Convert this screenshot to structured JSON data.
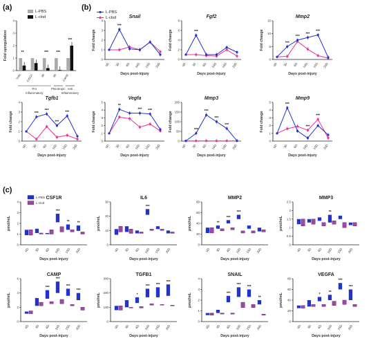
{
  "panel_labels": [
    "(a)",
    "(b)",
    "(c)"
  ],
  "colors": {
    "lpbs_blue": "#2233cc",
    "lclod_pink": "#e8339a",
    "lclod_box": "#9a4aa0",
    "lpbs_bar": "#aaaaaa",
    "lclod_bar": "#111111"
  },
  "legends": {
    "a": [
      "L-PBS",
      "L-clod"
    ],
    "b": [
      "L-PBS",
      "L-clod"
    ],
    "c": [
      "L-PBS",
      "L-clod"
    ]
  },
  "chart_data": [
    {
      "panel": "a",
      "type": "bar",
      "ylabel": "Fold upregulation",
      "ylim": [
        0,
        4
      ],
      "yticks": [
        0,
        1,
        2,
        3,
        4
      ],
      "categories": [
        "Tnfα",
        "Cd11c",
        "Il6",
        "Il6",
        "Camp"
      ],
      "groups": [
        {
          "label": "Pro Inflammatory",
          "span": [
            0,
            2
          ]
        },
        {
          "label": "Pleiotropic",
          "span": [
            3,
            3
          ]
        },
        {
          "label": "Anti Inflammatory",
          "span": [
            4,
            4
          ]
        }
      ],
      "series": [
        {
          "name": "L-PBS",
          "values": [
            1,
            1,
            1,
            1,
            1
          ]
        },
        {
          "name": "L-clod",
          "values": [
            0.4,
            0.6,
            0.2,
            0.05,
            2.0
          ]
        }
      ],
      "sig": [
        "**",
        "",
        "***",
        "***",
        "***"
      ]
    },
    {
      "panel": "b",
      "type": "line",
      "x": [
        "0D",
        "3D",
        "6D",
        "10D",
        "15D",
        "20D"
      ],
      "xlabel": "Days post-injury",
      "ylabel": "Fold change",
      "subplots": [
        {
          "title": "Snail",
          "ylim": [
            0,
            4
          ],
          "yticks": [
            0,
            1,
            2,
            3,
            4
          ],
          "pbs": [
            1,
            3.1,
            1.1,
            1,
            1.8,
            0.5
          ],
          "clod": [
            1,
            1,
            1.3,
            1,
            1.8,
            0.8
          ],
          "sig": [
            "",
            "***",
            "",
            "",
            "",
            ""
          ]
        },
        {
          "title": "Fgf2",
          "ylim": [
            0,
            8
          ],
          "yticks": [
            0,
            2,
            4,
            6,
            8
          ],
          "pbs": [
            1,
            5,
            1,
            1,
            2.5,
            1.5
          ],
          "clod": [
            1,
            1,
            0.8,
            0.7,
            2,
            0.7
          ],
          "sig": [
            "",
            "***",
            "",
            "",
            "",
            ""
          ]
        },
        {
          "title": "Mmp2",
          "ylim": [
            0,
            15
          ],
          "yticks": [
            0,
            5,
            10,
            15
          ],
          "pbs": [
            1,
            5,
            7.5,
            8.5,
            9.5,
            0.8
          ],
          "clod": [
            1,
            1.2,
            7,
            4,
            1.5,
            0.5
          ],
          "sig": [
            "",
            "***",
            "***",
            "***",
            "***",
            ""
          ]
        },
        {
          "title": "Tgfb1",
          "ylim": [
            0,
            4
          ],
          "yticks": [
            0,
            1,
            2,
            3,
            4
          ],
          "pbs": [
            1,
            2.5,
            2.8,
            1.6,
            2.6,
            0.5
          ],
          "clod": [
            1,
            0.2,
            1.5,
            0.4,
            0.6,
            0.2
          ],
          "sig": [
            "",
            "***",
            "***",
            "***",
            "***",
            ""
          ]
        },
        {
          "title": "Vegfa",
          "ylim": [
            0,
            5
          ],
          "yticks": [
            0,
            1,
            2,
            3,
            4,
            5
          ],
          "pbs": [
            1,
            4.1,
            3.6,
            3.6,
            3.5,
            1.5
          ],
          "clod": [
            1,
            3.1,
            2.9,
            1.8,
            2.2,
            1.3
          ],
          "sig": [
            "",
            "**",
            "",
            "***",
            "***",
            ""
          ]
        },
        {
          "title": "Mmp3",
          "ylim": [
            0,
            200
          ],
          "yticks": [
            0,
            50,
            100,
            150,
            200
          ],
          "pbs": [
            1,
            40,
            135,
            100,
            65,
            1
          ],
          "clod": [
            1,
            1,
            1,
            1,
            1,
            1
          ],
          "sig": [
            "",
            "***",
            "***",
            "***",
            "***",
            ""
          ]
        },
        {
          "title": "Mmp9",
          "ylim": [
            0,
            5
          ],
          "yticks": [
            0,
            1,
            2,
            3,
            4,
            5
          ],
          "pbs": [
            1,
            4.3,
            1.3,
            0.4,
            2,
            0.8
          ],
          "clod": [
            1,
            1.6,
            1.9,
            1.4,
            2.8,
            0.4
          ],
          "sig": [
            "",
            "***",
            "",
            "***",
            "***",
            ""
          ]
        }
      ]
    },
    {
      "panel": "c",
      "type": "box",
      "x": [
        "0D",
        "3D",
        "6D",
        "10D",
        "15D",
        "20D"
      ],
      "xlabel": "Days post-injury",
      "ylabel": "pmol/mL",
      "subplots": [
        {
          "title": "CSF1R",
          "ylim": [
            0,
            4
          ],
          "yticks": [
            0,
            1,
            2,
            3,
            4
          ],
          "pbs": [
            [
              0.9,
              1.4
            ],
            [
              1.1,
              1.5
            ],
            [
              1.0,
              1.1
            ],
            [
              2.1,
              2.9
            ],
            [
              1.4,
              1.9
            ],
            [
              1.3,
              1.8
            ]
          ],
          "clod": [
            [
              0.9,
              1.4
            ],
            [
              1.0,
              1.1
            ],
            [
              1.0,
              1.4
            ],
            [
              1.2,
              1.7
            ],
            [
              1.2,
              1.4
            ],
            [
              1.0,
              1.2
            ]
          ],
          "sig": [
            "",
            "",
            "",
            "***",
            "**",
            "**"
          ]
        },
        {
          "title": "IL6",
          "ylim": [
            0,
            30
          ],
          "yticks": [
            0,
            10,
            20,
            30
          ],
          "pbs": [
            [
              7,
              11
            ],
            [
              9,
              13
            ],
            [
              8,
              10
            ],
            [
              21,
              25
            ],
            [
              11,
              13
            ],
            [
              8,
              10
            ]
          ],
          "clod": [
            [
              9,
              13
            ],
            [
              8,
              11
            ],
            [
              8,
              9
            ],
            [
              10,
              11
            ],
            [
              10,
              11
            ],
            [
              8,
              9
            ]
          ],
          "sig": [
            "",
            "",
            "",
            "***",
            "",
            ""
          ]
        },
        {
          "title": "MMP2",
          "ylim": [
            0,
            80
          ],
          "yticks": [
            0,
            20,
            40,
            60,
            80
          ],
          "pbs": [
            [
              22,
              32
            ],
            [
              30,
              36
            ],
            [
              40,
              46
            ],
            [
              48,
              56
            ],
            [
              30,
              36
            ],
            [
              25,
              32
            ]
          ],
          "clod": [
            [
              22,
              32
            ],
            [
              26,
              30
            ],
            [
              28,
              32
            ],
            [
              22,
              26
            ],
            [
              22,
              26
            ],
            [
              24,
              28
            ]
          ],
          "sig": [
            "",
            "**",
            "***",
            "***",
            "",
            ""
          ]
        },
        {
          "title": "MMP3",
          "ylim": [
            0,
            2.5
          ],
          "yticks": [
            0,
            0.5,
            1.0,
            1.5,
            2.0,
            2.5
          ],
          "pbs": [
            [
              1.2,
              1.5
            ],
            [
              1.3,
              1.5
            ],
            [
              1.4,
              1.6
            ],
            [
              1.3,
              1.75
            ],
            [
              1.5,
              1.7
            ],
            [
              1.15,
              1.3
            ]
          ],
          "clod": [
            [
              1.1,
              1.5
            ],
            [
              1.2,
              1.5
            ],
            [
              1.1,
              1.3
            ],
            [
              1.2,
              1.4
            ],
            [
              1.0,
              1.3
            ],
            [
              1.1,
              1.3
            ]
          ],
          "sig": [
            "",
            "",
            "",
            "**",
            "",
            ""
          ]
        },
        {
          "title": "CAMP",
          "ylim": [
            0,
            6
          ],
          "yticks": [
            0,
            2,
            4,
            6
          ],
          "pbs": [
            [
              1.1,
              1.4
            ],
            [
              2.2,
              3.3
            ],
            [
              3.2,
              4.4
            ],
            [
              4.0,
              5.6
            ],
            [
              3.6,
              4.6
            ],
            [
              3.0,
              4.0
            ]
          ],
          "clod": [
            [
              1.1,
              1.5
            ],
            [
              2.2,
              2.7
            ],
            [
              2.5,
              2.8
            ],
            [
              2.5,
              3.1
            ],
            [
              2.2,
              2.4
            ],
            [
              1.6,
              2.0
            ]
          ],
          "sig": [
            "",
            "",
            "***",
            "***",
            "***",
            "***"
          ]
        },
        {
          "title": "TGFB1",
          "ylim": [
            0,
            300
          ],
          "yticks": [
            0,
            100,
            200,
            300
          ],
          "pbs": [
            [
              80,
              110
            ],
            [
              100,
              150
            ],
            [
              130,
              170
            ],
            [
              170,
              230
            ],
            [
              170,
              240
            ],
            [
              180,
              260
            ]
          ],
          "clod": [
            [
              80,
              110
            ],
            [
              95,
              100
            ],
            [
              95,
              105
            ],
            [
              115,
              125
            ],
            [
              115,
              120
            ],
            [
              110,
              115
            ]
          ],
          "sig": [
            "",
            "",
            "*",
            "***",
            "***",
            "***"
          ]
        },
        {
          "title": "SNAIL",
          "ylim": [
            0,
            4
          ],
          "yticks": [
            0,
            1,
            2,
            3,
            4
          ],
          "pbs": [
            [
              0.6,
              0.8
            ],
            [
              0.8,
              1.1
            ],
            [
              1.8,
              2.4
            ],
            [
              2.3,
              3.2
            ],
            [
              2.3,
              3.0
            ],
            [
              1.6,
              2.0
            ]
          ],
          "clod": [
            [
              0.6,
              0.8
            ],
            [
              0.7,
              0.8
            ],
            [
              0.7,
              0.8
            ],
            [
              1.3,
              1.8
            ],
            [
              1.3,
              1.6
            ],
            [
              0.6,
              0.7
            ]
          ],
          "sig": [
            "",
            "",
            "***",
            "***",
            "***",
            "**"
          ]
        },
        {
          "title": "VEGFA",
          "ylim": [
            0,
            80
          ],
          "yticks": [
            0,
            20,
            40,
            60,
            80
          ],
          "pbs": [
            [
              25,
              30
            ],
            [
              28,
              40
            ],
            [
              38,
              46
            ],
            [
              40,
              50
            ],
            [
              60,
              72
            ],
            [
              40,
              60
            ]
          ],
          "clod": [
            [
              25,
              30
            ],
            [
              28,
              32
            ],
            [
              28,
              32
            ],
            [
              30,
              38
            ],
            [
              32,
              40
            ],
            [
              28,
              32
            ]
          ],
          "sig": [
            "",
            "",
            "*",
            "**",
            "***",
            "***"
          ]
        }
      ]
    }
  ]
}
